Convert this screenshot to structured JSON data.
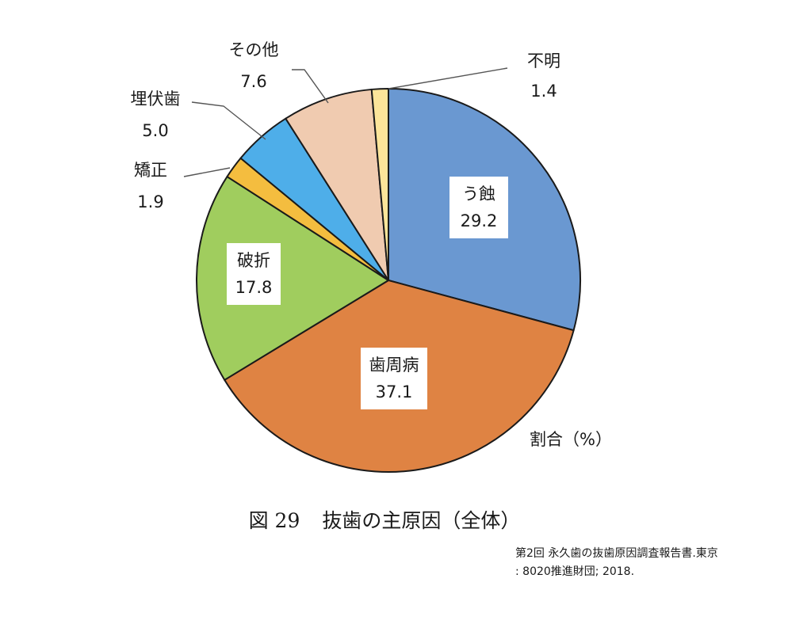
{
  "chart_data": {
    "type": "pie",
    "unit_label": "割合（%）",
    "start_angle_deg": 0,
    "direction": "clockwise",
    "slices": [
      {
        "label": "う蝕",
        "value": 29.2,
        "color": "#6a98d1",
        "label_style": "inside-box"
      },
      {
        "label": "歯周病",
        "value": 37.1,
        "color": "#df8343",
        "label_style": "inside-box"
      },
      {
        "label": "破折",
        "value": 17.8,
        "color": "#a0cd5e",
        "label_style": "inside-box"
      },
      {
        "label": "矯正",
        "value": 1.9,
        "color": "#f4bd3f",
        "label_style": "outside-leader"
      },
      {
        "label": "埋伏歯",
        "value": 5.0,
        "color": "#4eaee9",
        "label_style": "outside-leader"
      },
      {
        "label": "その他",
        "value": 7.6,
        "color": "#f0cbb0",
        "label_style": "outside-leader"
      },
      {
        "label": "不明",
        "value": 1.4,
        "color": "#fce59a",
        "label_style": "outside-leader"
      }
    ]
  },
  "caption": {
    "figure_number": "図 29",
    "title": "抜歯の主原因（全体）"
  },
  "source": {
    "line1": "第2回 永久歯の抜歯原因調査報告書.東京",
    "line2": ": 8020推進財団; 2018."
  }
}
